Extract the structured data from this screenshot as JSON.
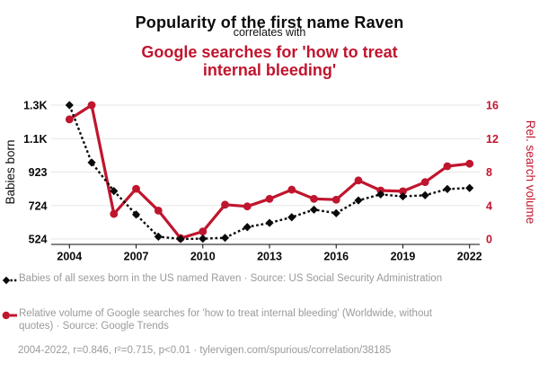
{
  "title": "Popularity of the first name Raven",
  "connector": "correlates with",
  "subtitle": "Google searches for 'how to treat internal bleeding'",
  "colors": {
    "accent_red": "#c0152e",
    "series_black": "#0a0a0a",
    "gridline": "#e7e7e7",
    "legend_text": "#9a9a9a"
  },
  "chart_data": {
    "type": "line",
    "x": [
      2004,
      2005,
      2006,
      2007,
      2008,
      2009,
      2010,
      2011,
      2012,
      2013,
      2014,
      2015,
      2016,
      2017,
      2018,
      2019,
      2020,
      2021,
      2022
    ],
    "x_tick_labels": [
      "2004",
      "2007",
      "2010",
      "2013",
      "2016",
      "2019",
      "2022"
    ],
    "series": [
      {
        "name": "Babies of all sexes born in the US named Raven",
        "short_name": "Babies born",
        "axis": "left",
        "line_style": "dashed",
        "marker": "diamond",
        "color": "#0a0a0a",
        "values": [
          1322,
          980,
          810,
          670,
          538,
          524,
          526,
          531,
          595,
          620,
          654,
          699,
          678,
          754,
          790,
          778,
          785,
          822,
          828
        ]
      },
      {
        "name": "Relative volume of Google searches for 'how to treat internal bleeding'",
        "short_name": "Rel. search volume",
        "axis": "right",
        "line_style": "solid",
        "marker": "circle",
        "color": "#c0152e",
        "values": [
          14.3,
          16,
          3.0,
          6.0,
          3.4,
          0.1,
          0.9,
          4.1,
          3.9,
          4.8,
          5.9,
          4.8,
          4.7,
          7.0,
          5.8,
          5.7,
          6.8,
          8.7,
          9.0
        ]
      }
    ],
    "left_axis": {
      "label": "Babies born",
      "tick_labels": [
        "1.3K",
        "1.1K",
        "923",
        "724",
        "524"
      ],
      "min": 524,
      "max": 1322
    },
    "right_axis": {
      "label": "Rel. search volume",
      "tick_labels": [
        "16",
        "12",
        "8",
        "4",
        "0"
      ],
      "min": 0,
      "max": 16
    },
    "grid": true,
    "legend_position": "below"
  },
  "legend": {
    "items": [
      {
        "label": "Babies of all sexes born in the US named Raven · Source: US Social Security Administration",
        "marker": "black-diamond-dashed"
      },
      {
        "label": "Relative volume of Google searches for 'how to treat internal bleeding' (Worldwide, without quotes) · Source: Google Trends",
        "marker": "red-circle-solid"
      }
    ]
  },
  "footer": "2004-2022, r=0.846, r²=0.715, p<0.01 · tylervigen.com/spurious/correlation/38185"
}
